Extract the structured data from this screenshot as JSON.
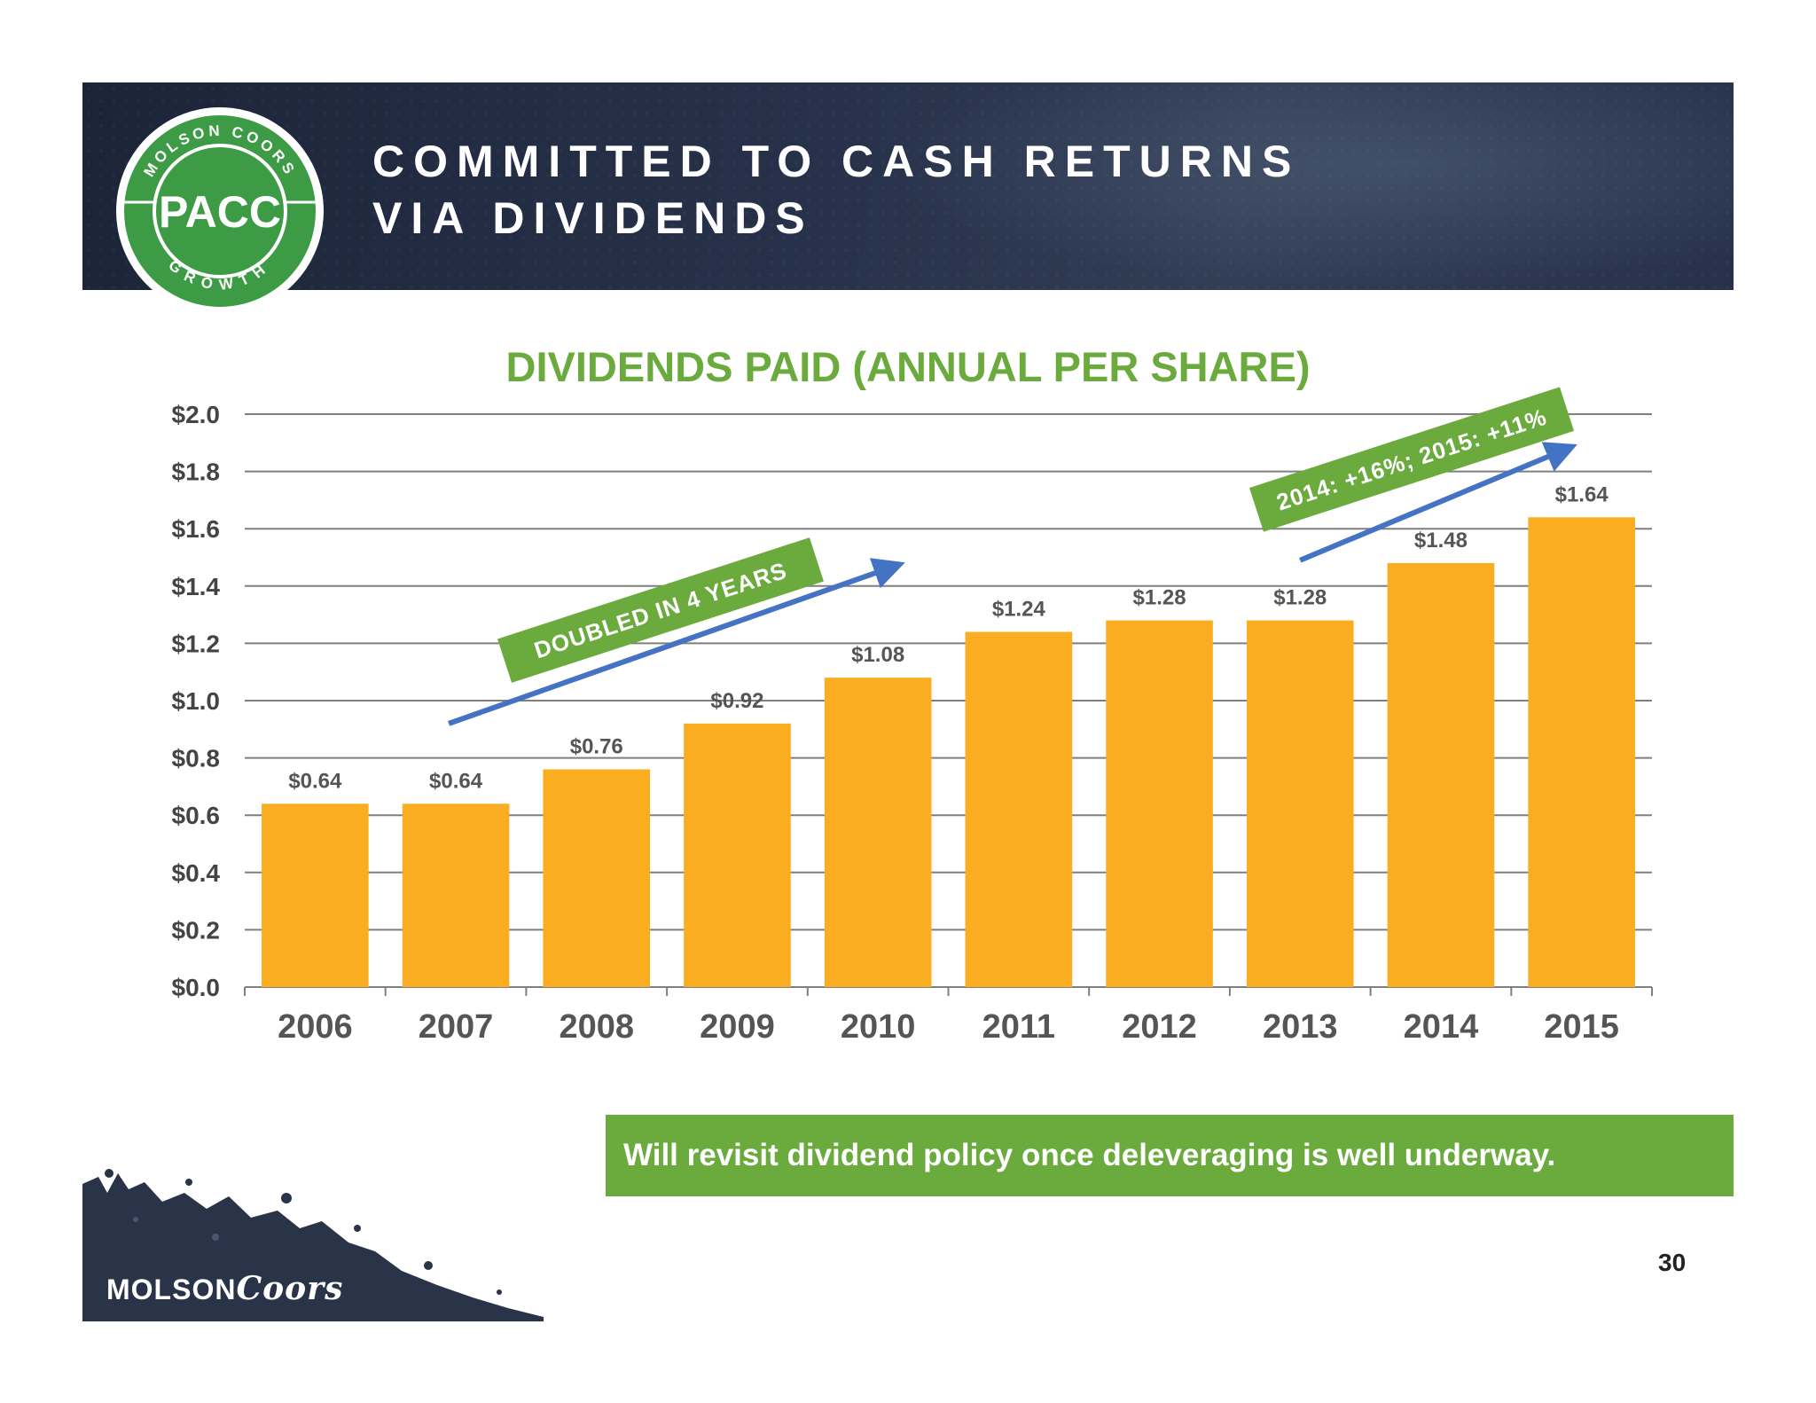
{
  "header": {
    "title_line1": "COMMITTED TO CASH RETURNS",
    "title_line2": "VIA DIVIDENDS"
  },
  "badge": {
    "ring_top": "MOLSON COORS",
    "center": "PACC",
    "ring_bottom": "GROWTH"
  },
  "chart_data": {
    "type": "bar",
    "title": "DIVIDENDS PAID (ANNUAL PER SHARE)",
    "categories": [
      "2006",
      "2007",
      "2008",
      "2009",
      "2010",
      "2011",
      "2012",
      "2013",
      "2014",
      "2015"
    ],
    "values": [
      0.64,
      0.64,
      0.76,
      0.92,
      1.08,
      1.24,
      1.28,
      1.28,
      1.48,
      1.64
    ],
    "value_labels": [
      "$0.64",
      "$0.64",
      "$0.76",
      "$0.92",
      "$1.08",
      "$1.24",
      "$1.28",
      "$1.28",
      "$1.48",
      "$1.64"
    ],
    "y_ticks": [
      0,
      0.2,
      0.4,
      0.6,
      0.8,
      1.0,
      1.2,
      1.4,
      1.6,
      1.8,
      2.0
    ],
    "y_tick_labels": [
      "$0.0",
      "$0.2",
      "$0.4",
      "$0.6",
      "$0.8",
      "$1.0",
      "$1.2",
      "$1.4",
      "$1.6",
      "$1.8",
      "$2.0"
    ],
    "ylim": [
      0,
      2.0
    ],
    "xlabel": "",
    "ylabel": "",
    "grid": true,
    "bar_color": "#fbad21",
    "annotations": [
      {
        "text": "DOUBLED IN 4 YEARS",
        "from": "2007",
        "to": "2011"
      },
      {
        "text": "2014: +16%; 2015: +11%",
        "from": "2013",
        "to": "2015"
      }
    ]
  },
  "footer": {
    "statement": "Will revisit dividend policy once deleveraging is well underway.",
    "page_number": "30"
  },
  "logo": {
    "brand_part1": "MOLSON",
    "brand_part2": "Coors"
  },
  "colors": {
    "accent_green": "#6bab3e",
    "bar_orange": "#fbad21",
    "arrow_blue": "#4472c4",
    "header_navy": "#1f2940"
  }
}
